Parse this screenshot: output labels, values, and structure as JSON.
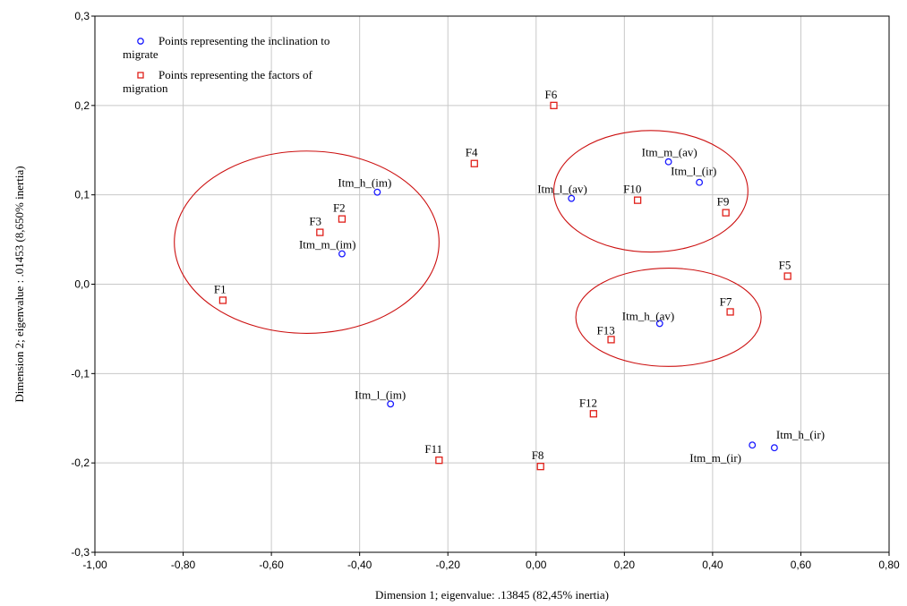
{
  "chart_data": {
    "type": "scatter",
    "xlabel": "Dimension 1; eigenvalue:  .13845 (82,45% inertia)",
    "ylabel": "Dimension 2; eigenvalue :  .01453 (8,650% inertia)",
    "xlim": [
      -1.0,
      0.8
    ],
    "ylim": [
      -0.3,
      0.3
    ],
    "x_ticks": [
      "-1,00",
      "-0,80",
      "-0,60",
      "-0,40",
      "-0,20",
      "0,00",
      "0,20",
      "0,40",
      "0,60",
      "0,80"
    ],
    "y_ticks": [
      "-0,3",
      "-0,2",
      "-0,1",
      "0,0",
      "0,1",
      "0,2",
      "0,3"
    ],
    "grid": true,
    "legend_position": "top-left",
    "series": [
      {
        "name": "Points representing the inclination to migrate",
        "marker": "circle",
        "color": "#1a1aff",
        "points": [
          {
            "label": "Itm_h_(im)",
            "x": -0.36,
            "y": 0.103
          },
          {
            "label": "Itm_m_(im)",
            "x": -0.44,
            "y": 0.034
          },
          {
            "label": "Itm_l_(im)",
            "x": -0.33,
            "y": -0.134
          },
          {
            "label": "Itm_l_(av)",
            "x": 0.08,
            "y": 0.096
          },
          {
            "label": "Itm_m_(av)",
            "x": 0.3,
            "y": 0.137
          },
          {
            "label": "Itm_l_(ir)",
            "x": 0.37,
            "y": 0.114
          },
          {
            "label": "Itm_h_(av)",
            "x": 0.28,
            "y": -0.044
          },
          {
            "label": "Itm_m_(ir)",
            "x": 0.49,
            "y": -0.18
          },
          {
            "label": "Itm_h_(ir)",
            "x": 0.54,
            "y": -0.183
          }
        ]
      },
      {
        "name": "Points representing the factors of migration",
        "marker": "square",
        "color": "#e0201a",
        "points": [
          {
            "label": "F1",
            "x": -0.71,
            "y": -0.018
          },
          {
            "label": "F2",
            "x": -0.44,
            "y": 0.073
          },
          {
            "label": "F3",
            "x": -0.49,
            "y": 0.058
          },
          {
            "label": "F4",
            "x": -0.14,
            "y": 0.135
          },
          {
            "label": "F5",
            "x": 0.57,
            "y": 0.009
          },
          {
            "label": "F6",
            "x": 0.04,
            "y": 0.2
          },
          {
            "label": "F7",
            "x": 0.44,
            "y": -0.031
          },
          {
            "label": "F8",
            "x": 0.01,
            "y": -0.204
          },
          {
            "label": "F9",
            "x": 0.43,
            "y": 0.08
          },
          {
            "label": "F10",
            "x": 0.23,
            "y": 0.094
          },
          {
            "label": "F11",
            "x": -0.22,
            "y": -0.197
          },
          {
            "label": "F12",
            "x": 0.13,
            "y": -0.145
          },
          {
            "label": "F13",
            "x": 0.17,
            "y": -0.062
          }
        ]
      }
    ],
    "ellipses": [
      {
        "name": "cluster-left",
        "cx": -0.52,
        "cy": 0.047,
        "rx": 0.3,
        "ry": 0.102
      },
      {
        "name": "cluster-upper-right",
        "cx": 0.26,
        "cy": 0.104,
        "rx": 0.22,
        "ry": 0.068
      },
      {
        "name": "cluster-lower-right",
        "cx": 0.3,
        "cy": -0.037,
        "rx": 0.21,
        "ry": 0.055
      }
    ],
    "ellipse_color": "#cc1010"
  },
  "legend": {
    "entries": [
      {
        "line1": "Points representing the inclination to",
        "line2": "migrate"
      },
      {
        "line1": "Points representing the factors of",
        "line2": "migration"
      }
    ]
  }
}
